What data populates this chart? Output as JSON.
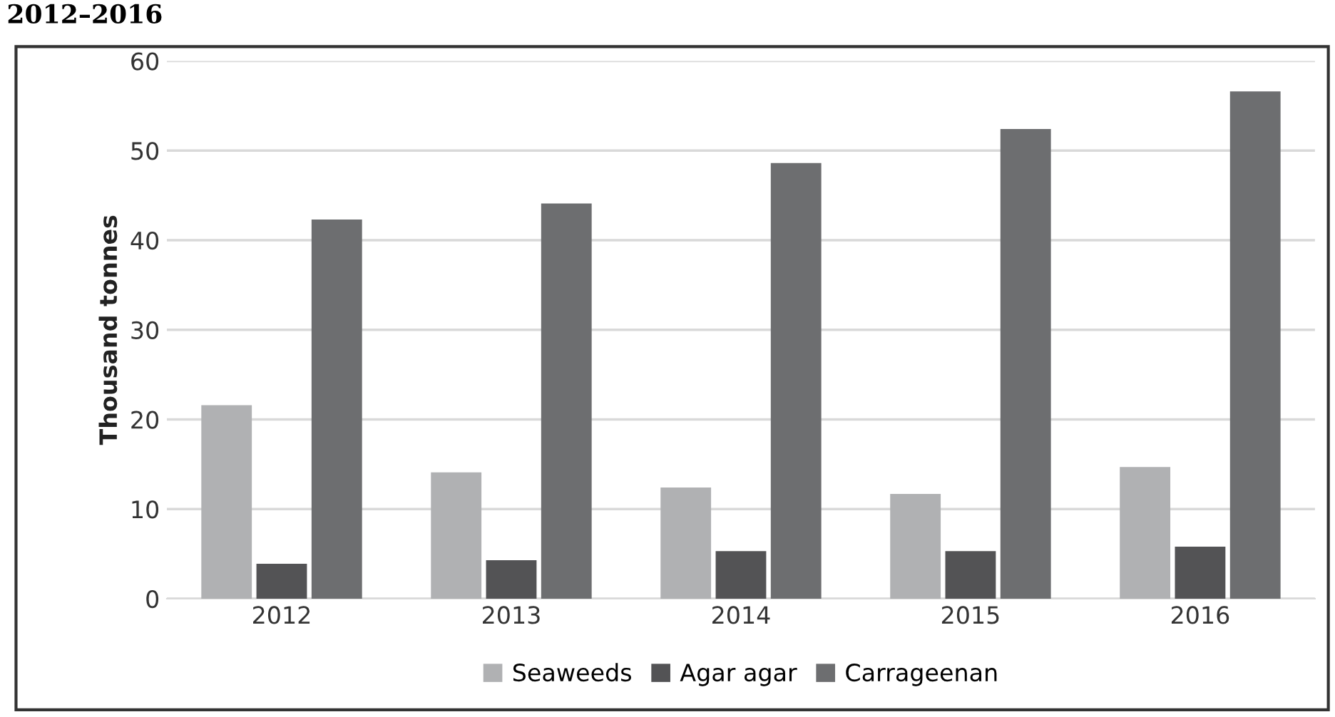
{
  "chart_data": {
    "type": "bar",
    "title": "2012–2016",
    "ylabel": "Thousand tonnes",
    "categories": [
      "2012",
      "2013",
      "2014",
      "2015",
      "2016"
    ],
    "series": [
      {
        "name": "Seaweeds",
        "color": "#b0b1b3",
        "values": [
          21.6,
          14.1,
          12.4,
          11.7,
          14.7
        ]
      },
      {
        "name": "Agar agar",
        "color": "#535355",
        "values": [
          3.9,
          4.3,
          5.3,
          5.3,
          5.8
        ]
      },
      {
        "name": "Carrageenan",
        "color": "#6d6e70",
        "values": [
          42.3,
          44.1,
          48.6,
          52.4,
          56.6
        ]
      }
    ],
    "ylim": [
      0,
      60
    ],
    "yticks": [
      0,
      10,
      20,
      30,
      40,
      50,
      60
    ],
    "grid": "y",
    "legend": "bottom"
  }
}
